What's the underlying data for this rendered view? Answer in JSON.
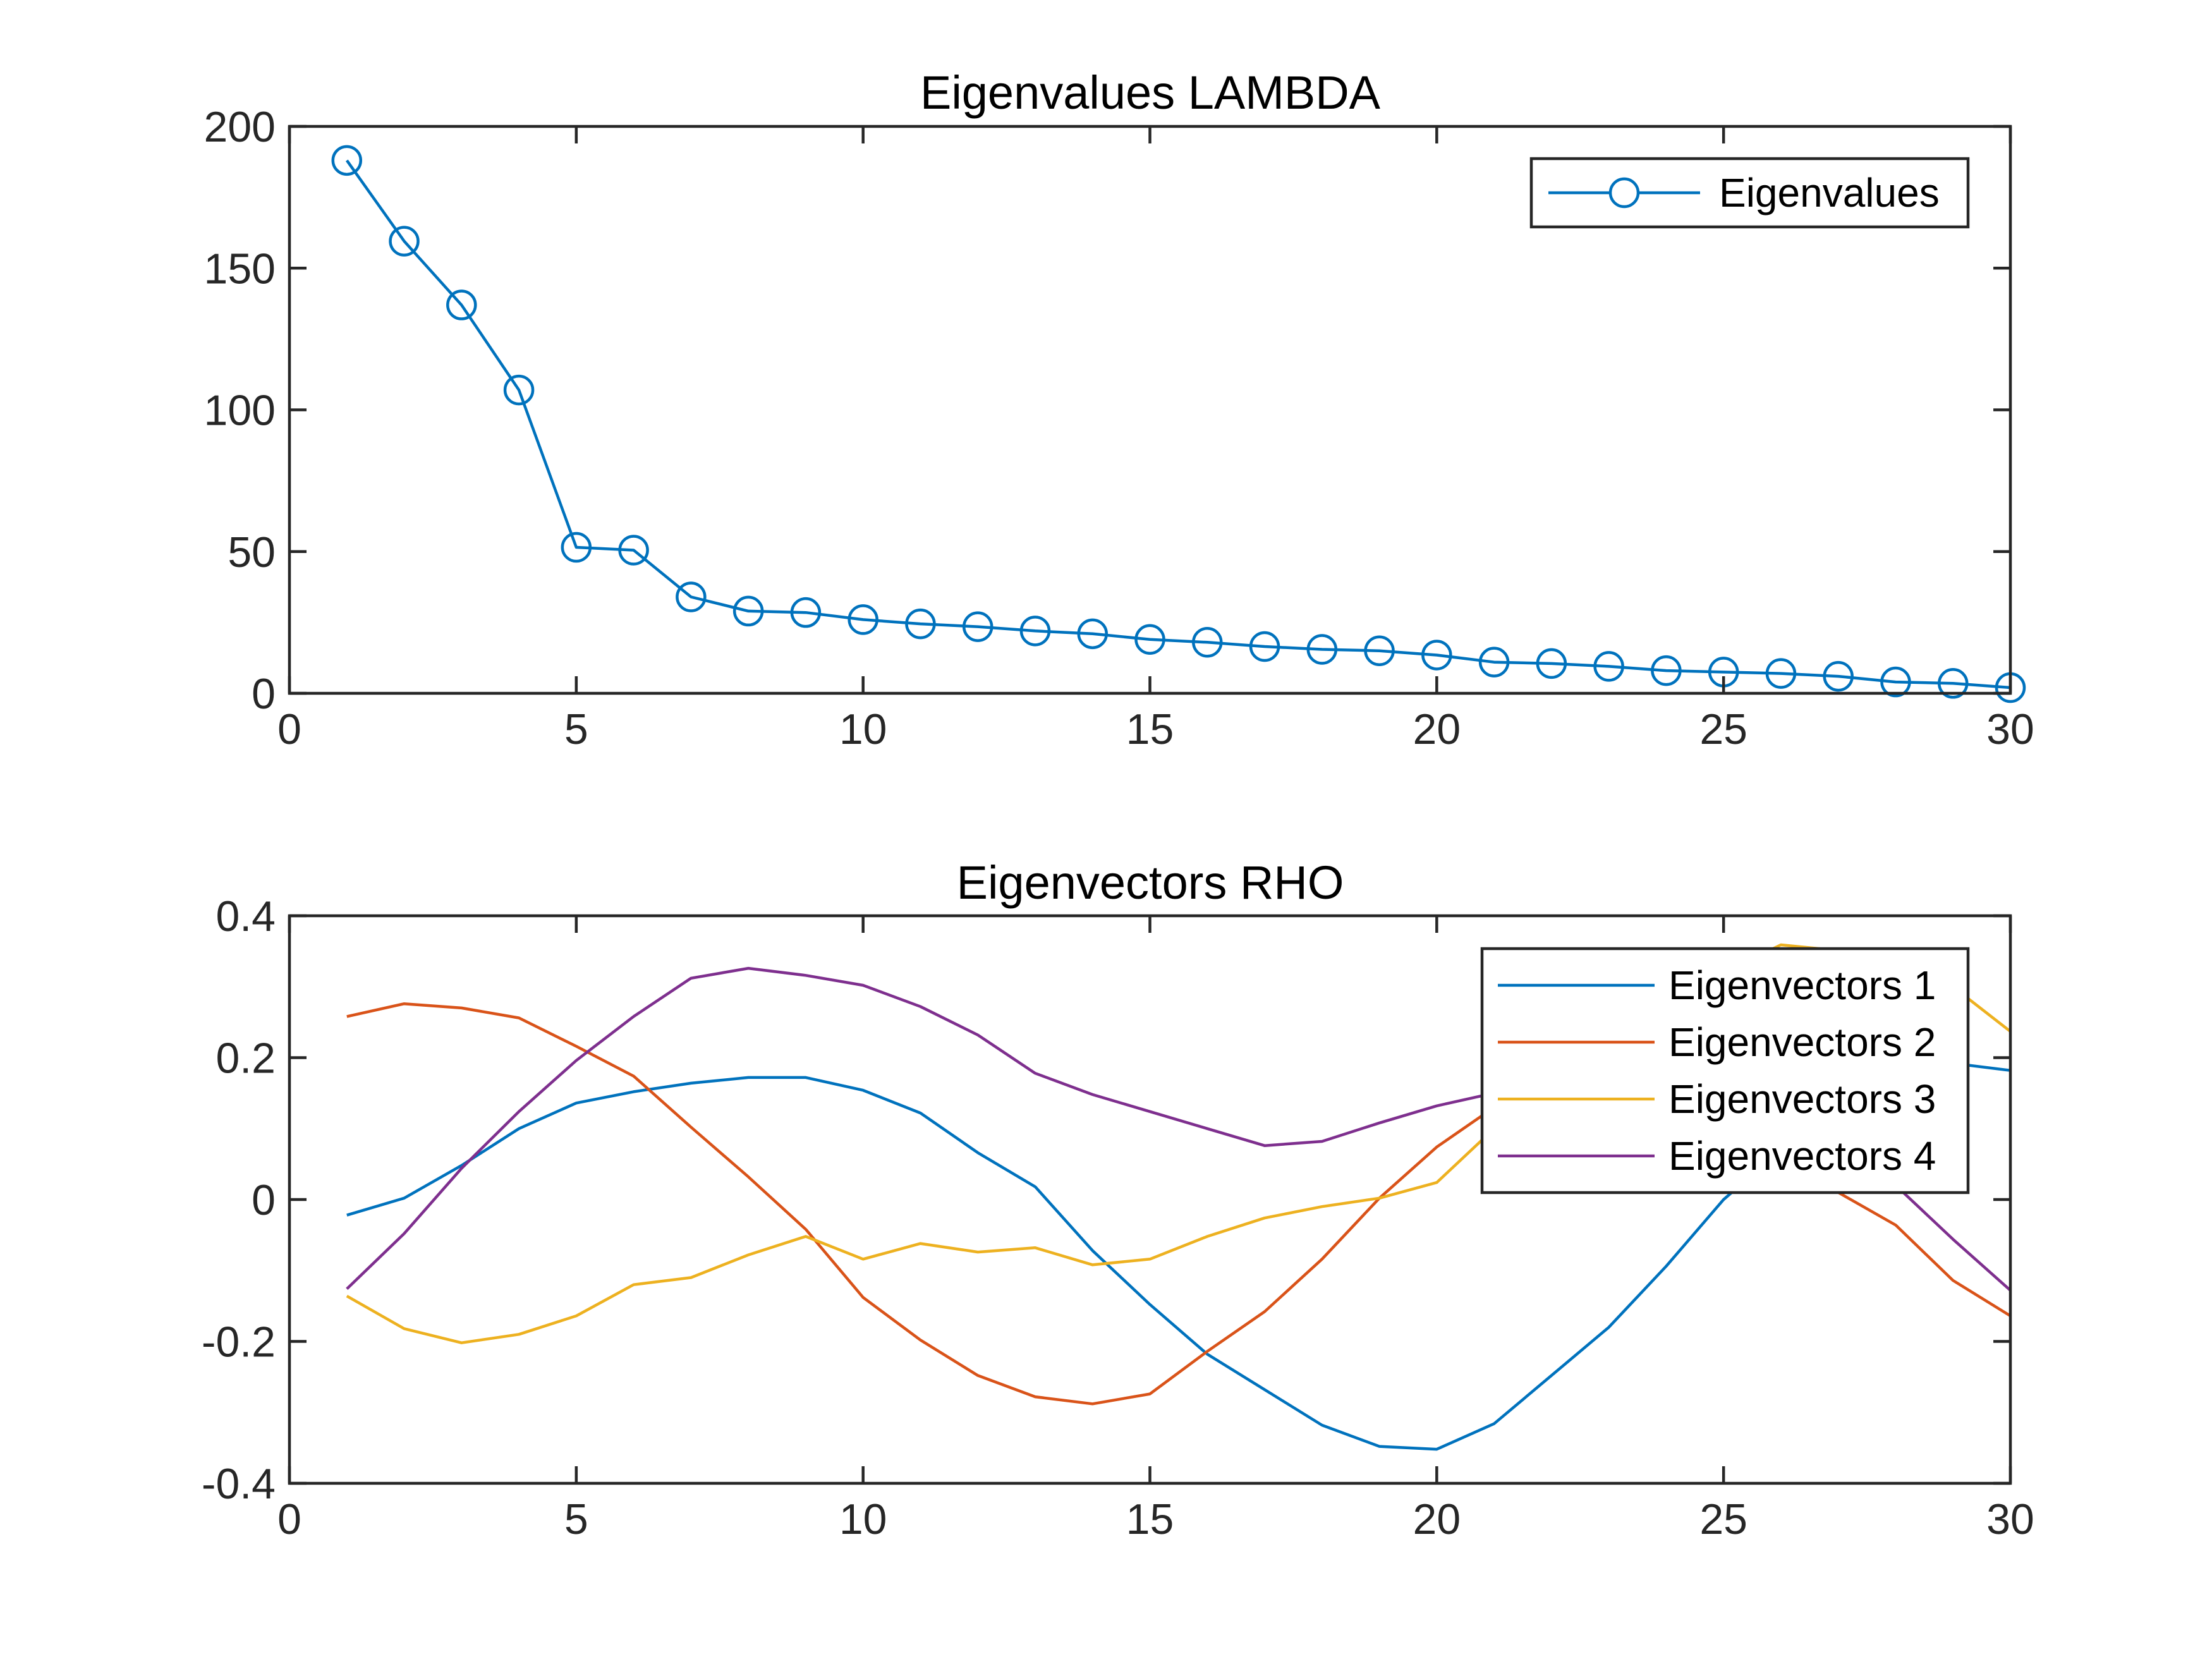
{
  "chart_data": [
    {
      "type": "line",
      "title": "Eigenvalues LAMBDA",
      "xlabel": "",
      "ylabel": "",
      "xlim": [
        0,
        30
      ],
      "ylim": [
        0,
        200
      ],
      "xticks": [
        "0",
        "5",
        "10",
        "15",
        "20",
        "25",
        "30"
      ],
      "yticks": [
        "0",
        "50",
        "100",
        "150",
        "200"
      ],
      "grid": false,
      "legend_position": "top-right",
      "x": [
        1,
        2,
        3,
        4,
        5,
        6,
        7,
        8,
        9,
        10,
        11,
        12,
        13,
        14,
        15,
        16,
        17,
        18,
        19,
        20,
        21,
        22,
        23,
        24,
        25,
        26,
        27,
        28,
        29,
        30
      ],
      "series": [
        {
          "name": "Eigenvalues",
          "color": "#0072BD",
          "marker": "circle",
          "values": [
            188,
            159.5,
            137,
            107,
            51.5,
            50.5,
            34,
            29,
            28.5,
            26,
            24.5,
            23.5,
            22,
            21,
            19,
            18,
            16.5,
            15.5,
            15,
            13.5,
            11,
            10.5,
            9.5,
            8,
            7.5,
            7,
            6,
            4,
            3.5,
            2
          ]
        }
      ]
    },
    {
      "type": "line",
      "title": "Eigenvectors RHO",
      "xlabel": "",
      "ylabel": "",
      "xlim": [
        0,
        30
      ],
      "ylim": [
        -0.4,
        0.4
      ],
      "xticks": [
        "0",
        "5",
        "10",
        "15",
        "20",
        "25",
        "30"
      ],
      "yticks": [
        "-0.4",
        "-0.2",
        "0",
        "0.2",
        "0.4"
      ],
      "grid": false,
      "legend_position": "top-right",
      "x": [
        1,
        2,
        3,
        4,
        5,
        6,
        7,
        8,
        9,
        10,
        11,
        12,
        13,
        14,
        15,
        16,
        17,
        18,
        19,
        20,
        21,
        22,
        23,
        24,
        25,
        26,
        27,
        28,
        29,
        30
      ],
      "series": [
        {
          "name": "Eigenvectors 1",
          "color": "#0072BD",
          "values": [
            -0.022,
            0.002,
            0.048,
            0.1,
            0.136,
            0.152,
            0.164,
            0.172,
            0.172,
            0.154,
            0.122,
            0.066,
            0.018,
            -0.072,
            -0.148,
            -0.218,
            -0.268,
            -0.318,
            -0.348,
            -0.352,
            -0.316,
            -0.248,
            -0.18,
            -0.094,
            0.0,
            0.07,
            0.13,
            0.17,
            0.192,
            0.182
          ]
        },
        {
          "name": "Eigenvectors 2",
          "color": "#D95319",
          "values": [
            0.258,
            0.276,
            0.27,
            0.256,
            0.216,
            0.174,
            0.102,
            0.032,
            -0.042,
            -0.138,
            -0.198,
            -0.248,
            -0.278,
            -0.288,
            -0.274,
            -0.214,
            -0.158,
            -0.084,
            0.002,
            0.074,
            0.13,
            0.17,
            0.2,
            0.2,
            0.16,
            0.08,
            0.01,
            -0.036,
            -0.114,
            -0.164
          ]
        },
        {
          "name": "Eigenvectors 3",
          "color": "#EDB120",
          "values": [
            -0.136,
            -0.182,
            -0.202,
            -0.19,
            -0.164,
            -0.12,
            -0.11,
            -0.078,
            -0.052,
            -0.084,
            -0.062,
            -0.074,
            -0.068,
            -0.092,
            -0.084,
            -0.052,
            -0.026,
            -0.01,
            0.002,
            0.024,
            0.1,
            0.16,
            0.22,
            0.27,
            0.32,
            0.359,
            0.351,
            0.33,
            0.3,
            0.237
          ]
        },
        {
          "name": "Eigenvectors 4",
          "color": "#7E2F8E",
          "values": [
            -0.126,
            -0.048,
            0.044,
            0.124,
            0.196,
            0.258,
            0.312,
            0.326,
            0.316,
            0.302,
            0.272,
            0.232,
            0.178,
            0.148,
            0.124,
            0.1,
            0.076,
            0.082,
            0.108,
            0.132,
            0.15,
            0.17,
            0.19,
            0.2,
            0.19,
            0.15,
            0.09,
            0.02,
            -0.056,
            -0.128
          ]
        }
      ]
    }
  ]
}
